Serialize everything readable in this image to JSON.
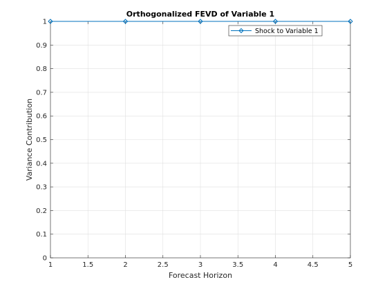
{
  "chart_data": {
    "type": "line",
    "title": "Orthogonalized FEVD of Variable 1",
    "xlabel": "Forecast Horizon",
    "ylabel": "Variance Contribution",
    "xlim": [
      1,
      5
    ],
    "ylim": [
      0,
      1
    ],
    "xticks": [
      "1",
      "1.5",
      "2",
      "2.5",
      "3",
      "3.5",
      "4",
      "4.5",
      "5"
    ],
    "yticks": [
      "0",
      "0.1",
      "0.2",
      "0.3",
      "0.4",
      "0.5",
      "0.6",
      "0.7",
      "0.8",
      "0.9",
      "1"
    ],
    "grid": true,
    "legend_position": "top-right",
    "series": [
      {
        "name": "Shock to Variable 1",
        "color": "#0072BD",
        "marker": "diamond",
        "x": [
          1,
          2,
          3,
          4,
          5
        ],
        "y": [
          1,
          1,
          1,
          1,
          1
        ]
      }
    ]
  }
}
